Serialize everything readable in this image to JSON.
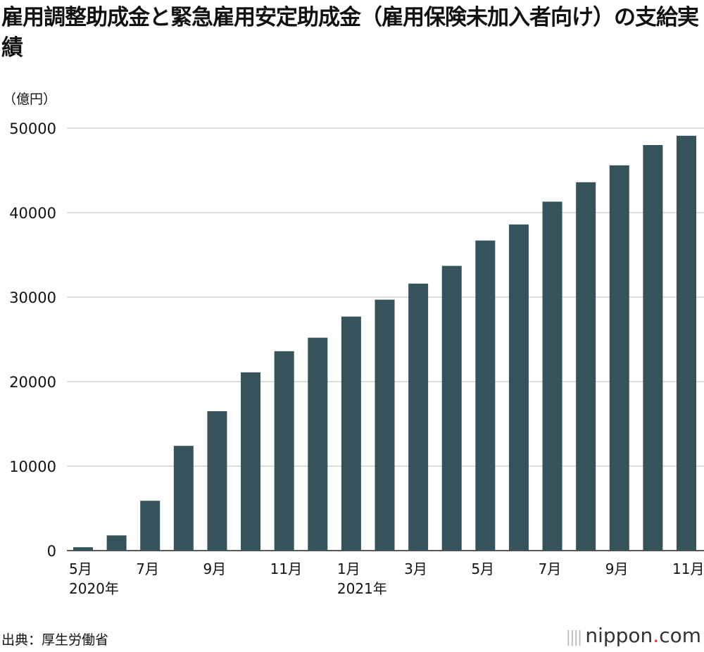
{
  "chart_data": {
    "type": "bar",
    "title": "雇用調整助成金と緊急雇用安定助成金（雇用保険未加入者向け）の支給実績",
    "ylabel": "（億円）",
    "xlabel": "",
    "ylim": [
      0,
      50000
    ],
    "yticks": [
      "0",
      "10000",
      "20000",
      "30000",
      "40000",
      "50000"
    ],
    "grid": true,
    "color": "#36525a",
    "categories": [
      "2020-05",
      "2020-06",
      "2020-07",
      "2020-08",
      "2020-09",
      "2020-10",
      "2020-11",
      "2020-12",
      "2021-01",
      "2021-02",
      "2021-03",
      "2021-04",
      "2021-05",
      "2021-06",
      "2021-07",
      "2021-08",
      "2021-09",
      "2021-10",
      "2021-11"
    ],
    "values": [
      400,
      1800,
      5900,
      12400,
      16500,
      21100,
      23600,
      25200,
      27700,
      29700,
      31600,
      33700,
      36700,
      38600,
      41300,
      43600,
      45600,
      48000,
      49100
    ],
    "xtick_labels": [
      {
        "index": 0,
        "label": "5月",
        "year": "2020年"
      },
      {
        "index": 2,
        "label": "7月"
      },
      {
        "index": 4,
        "label": "9月"
      },
      {
        "index": 6,
        "label": "11月"
      },
      {
        "index": 8,
        "label": "1月",
        "year": "2021年"
      },
      {
        "index": 10,
        "label": "3月"
      },
      {
        "index": 12,
        "label": "5月"
      },
      {
        "index": 14,
        "label": "7月"
      },
      {
        "index": 16,
        "label": "9月"
      },
      {
        "index": 18,
        "label": "11月"
      }
    ]
  },
  "source": "出典：厚生労働省",
  "logo": {
    "name": "nippon",
    "dot": ".",
    "suffix": "com"
  }
}
